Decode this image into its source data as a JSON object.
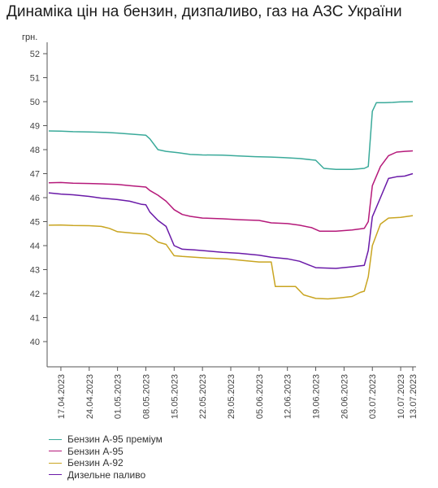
{
  "chart_data": {
    "type": "line",
    "title": "Динаміка цін на бензин, дизпаливо, газ на АЗС України",
    "ylabel": "грн.",
    "ylim": [
      40,
      52
    ],
    "yticks": [
      "40",
      "41",
      "42",
      "43",
      "44",
      "45",
      "46",
      "47",
      "48",
      "49",
      "50",
      "51",
      "52"
    ],
    "xlim": [
      "2023-04-14",
      "2023-07-13"
    ],
    "xticks": [
      "17.04.2023",
      "24.04.2023",
      "01.05.2023",
      "08.05.2023",
      "15.05.2023",
      "22.05.2023",
      "29.05.2023",
      "05.06.2023",
      "12.06.2023",
      "19.06.2023",
      "26.06.2023",
      "03.07.2023",
      "10.07.2023",
      "13.07.2023"
    ],
    "grid": false,
    "legend_position": "bottom",
    "series": [
      {
        "name": "Бензин А-95 преміум",
        "color": "#3aaa9a",
        "points": [
          [
            "2023-04-14",
            48.78
          ],
          [
            "2023-04-17",
            48.77
          ],
          [
            "2023-04-20",
            48.75
          ],
          [
            "2023-04-24",
            48.74
          ],
          [
            "2023-04-28",
            48.72
          ],
          [
            "2023-05-01",
            48.69
          ],
          [
            "2023-05-04",
            48.65
          ],
          [
            "2023-05-08",
            48.6
          ],
          [
            "2023-05-09",
            48.45
          ],
          [
            "2023-05-11",
            48.0
          ],
          [
            "2023-05-13",
            47.93
          ],
          [
            "2023-05-16",
            47.87
          ],
          [
            "2023-05-19",
            47.8
          ],
          [
            "2023-05-22",
            47.78
          ],
          [
            "2023-05-27",
            47.77
          ],
          [
            "2023-05-31",
            47.74
          ],
          [
            "2023-06-04",
            47.71
          ],
          [
            "2023-06-08",
            47.69
          ],
          [
            "2023-06-11",
            47.67
          ],
          [
            "2023-06-15",
            47.63
          ],
          [
            "2023-06-19",
            47.56
          ],
          [
            "2023-06-21",
            47.22
          ],
          [
            "2023-06-24",
            47.18
          ],
          [
            "2023-06-28",
            47.18
          ],
          [
            "2023-07-01",
            47.22
          ],
          [
            "2023-07-02",
            47.3
          ],
          [
            "2023-07-03",
            49.6
          ],
          [
            "2023-07-04",
            49.96
          ],
          [
            "2023-07-06",
            49.96
          ],
          [
            "2023-07-08",
            49.97
          ],
          [
            "2023-07-10",
            49.99
          ],
          [
            "2023-07-13",
            50.0
          ]
        ]
      },
      {
        "name": "Бензин А-95",
        "color": "#b5197a",
        "points": [
          [
            "2023-04-14",
            46.62
          ],
          [
            "2023-04-17",
            46.63
          ],
          [
            "2023-04-20",
            46.6
          ],
          [
            "2023-04-24",
            46.59
          ],
          [
            "2023-04-28",
            46.57
          ],
          [
            "2023-05-01",
            46.55
          ],
          [
            "2023-05-04",
            46.5
          ],
          [
            "2023-05-08",
            46.44
          ],
          [
            "2023-05-09",
            46.3
          ],
          [
            "2023-05-11",
            46.1
          ],
          [
            "2023-05-13",
            45.85
          ],
          [
            "2023-05-15",
            45.5
          ],
          [
            "2023-05-17",
            45.3
          ],
          [
            "2023-05-19",
            45.22
          ],
          [
            "2023-05-22",
            45.15
          ],
          [
            "2023-05-27",
            45.12
          ],
          [
            "2023-05-31",
            45.08
          ],
          [
            "2023-06-05",
            45.05
          ],
          [
            "2023-06-08",
            44.95
          ],
          [
            "2023-06-12",
            44.92
          ],
          [
            "2023-06-15",
            44.85
          ],
          [
            "2023-06-18",
            44.75
          ],
          [
            "2023-06-20",
            44.6
          ],
          [
            "2023-06-24",
            44.6
          ],
          [
            "2023-06-28",
            44.65
          ],
          [
            "2023-07-01",
            44.72
          ],
          [
            "2023-07-02",
            45.0
          ],
          [
            "2023-07-03",
            46.5
          ],
          [
            "2023-07-05",
            47.3
          ],
          [
            "2023-07-07",
            47.75
          ],
          [
            "2023-07-09",
            47.9
          ],
          [
            "2023-07-11",
            47.93
          ],
          [
            "2023-07-13",
            47.95
          ]
        ]
      },
      {
        "name": "Бензин А-92",
        "color": "#c9a521",
        "points": [
          [
            "2023-04-14",
            44.85
          ],
          [
            "2023-04-17",
            44.86
          ],
          [
            "2023-04-20",
            44.84
          ],
          [
            "2023-04-24",
            44.83
          ],
          [
            "2023-04-27",
            44.8
          ],
          [
            "2023-04-29",
            44.72
          ],
          [
            "2023-05-01",
            44.58
          ],
          [
            "2023-05-05",
            44.52
          ],
          [
            "2023-05-08",
            44.48
          ],
          [
            "2023-05-09",
            44.42
          ],
          [
            "2023-05-11",
            44.15
          ],
          [
            "2023-05-13",
            44.05
          ],
          [
            "2023-05-15",
            43.58
          ],
          [
            "2023-05-17",
            43.55
          ],
          [
            "2023-05-20",
            43.52
          ],
          [
            "2023-05-23",
            43.48
          ],
          [
            "2023-05-28",
            43.45
          ],
          [
            "2023-06-01",
            43.38
          ],
          [
            "2023-06-05",
            43.32
          ],
          [
            "2023-06-08",
            43.32
          ],
          [
            "2023-06-09",
            42.3
          ],
          [
            "2023-06-14",
            42.3
          ],
          [
            "2023-06-16",
            41.95
          ],
          [
            "2023-06-19",
            41.8
          ],
          [
            "2023-06-22",
            41.78
          ],
          [
            "2023-06-25",
            41.82
          ],
          [
            "2023-06-28",
            41.88
          ],
          [
            "2023-06-30",
            42.05
          ],
          [
            "2023-07-01",
            42.1
          ],
          [
            "2023-07-02",
            42.7
          ],
          [
            "2023-07-03",
            44.0
          ],
          [
            "2023-07-05",
            44.9
          ],
          [
            "2023-07-07",
            45.15
          ],
          [
            "2023-07-10",
            45.18
          ],
          [
            "2023-07-13",
            45.25
          ]
        ]
      },
      {
        "name": "Дизельне паливо",
        "color": "#6a1aa8",
        "points": [
          [
            "2023-04-14",
            46.2
          ],
          [
            "2023-04-17",
            46.15
          ],
          [
            "2023-04-20",
            46.12
          ],
          [
            "2023-04-24",
            46.05
          ],
          [
            "2023-04-27",
            45.98
          ],
          [
            "2023-05-01",
            45.92
          ],
          [
            "2023-05-04",
            45.85
          ],
          [
            "2023-05-07",
            45.72
          ],
          [
            "2023-05-08",
            45.7
          ],
          [
            "2023-05-09",
            45.4
          ],
          [
            "2023-05-11",
            45.05
          ],
          [
            "2023-05-13",
            44.8
          ],
          [
            "2023-05-15",
            44.0
          ],
          [
            "2023-05-17",
            43.85
          ],
          [
            "2023-05-20",
            43.82
          ],
          [
            "2023-05-23",
            43.78
          ],
          [
            "2023-05-27",
            43.72
          ],
          [
            "2023-05-31",
            43.68
          ],
          [
            "2023-06-05",
            43.6
          ],
          [
            "2023-06-08",
            43.52
          ],
          [
            "2023-06-12",
            43.45
          ],
          [
            "2023-06-15",
            43.35
          ],
          [
            "2023-06-19",
            43.08
          ],
          [
            "2023-06-24",
            43.05
          ],
          [
            "2023-06-28",
            43.12
          ],
          [
            "2023-07-01",
            43.18
          ],
          [
            "2023-07-02",
            43.8
          ],
          [
            "2023-07-03",
            45.2
          ],
          [
            "2023-07-05",
            46.0
          ],
          [
            "2023-07-07",
            46.8
          ],
          [
            "2023-07-09",
            46.87
          ],
          [
            "2023-07-11",
            46.9
          ],
          [
            "2023-07-13",
            47.0
          ]
        ]
      }
    ]
  }
}
